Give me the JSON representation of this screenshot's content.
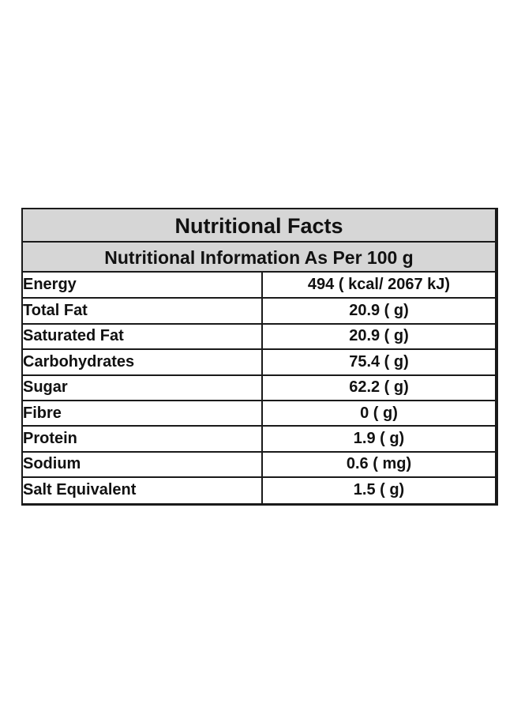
{
  "header": {
    "title": "Nutritional Facts",
    "subtitle": "Nutritional Information As Per 100 g"
  },
  "colors": {
    "header_background": "#d6d6d6",
    "border": "#1a1a1a",
    "text": "#111111"
  },
  "rows": [
    {
      "label": "Energy",
      "value": "494 ( kcal/ 2067 kJ)"
    },
    {
      "label": "Total Fat",
      "value": "20.9 ( g)"
    },
    {
      "label": "Saturated Fat",
      "value": "20.9 ( g)"
    },
    {
      "label": "Carbohydrates",
      "value": "75.4 ( g)"
    },
    {
      "label": "Sugar",
      "value": "62.2 ( g)"
    },
    {
      "label": "Fibre",
      "value": "0 ( g)"
    },
    {
      "label": "Protein",
      "value": "1.9 ( g)"
    },
    {
      "label": "Sodium",
      "value": "0.6 ( mg)"
    },
    {
      "label": "Salt Equivalent",
      "value": "1.5 ( g)"
    }
  ]
}
